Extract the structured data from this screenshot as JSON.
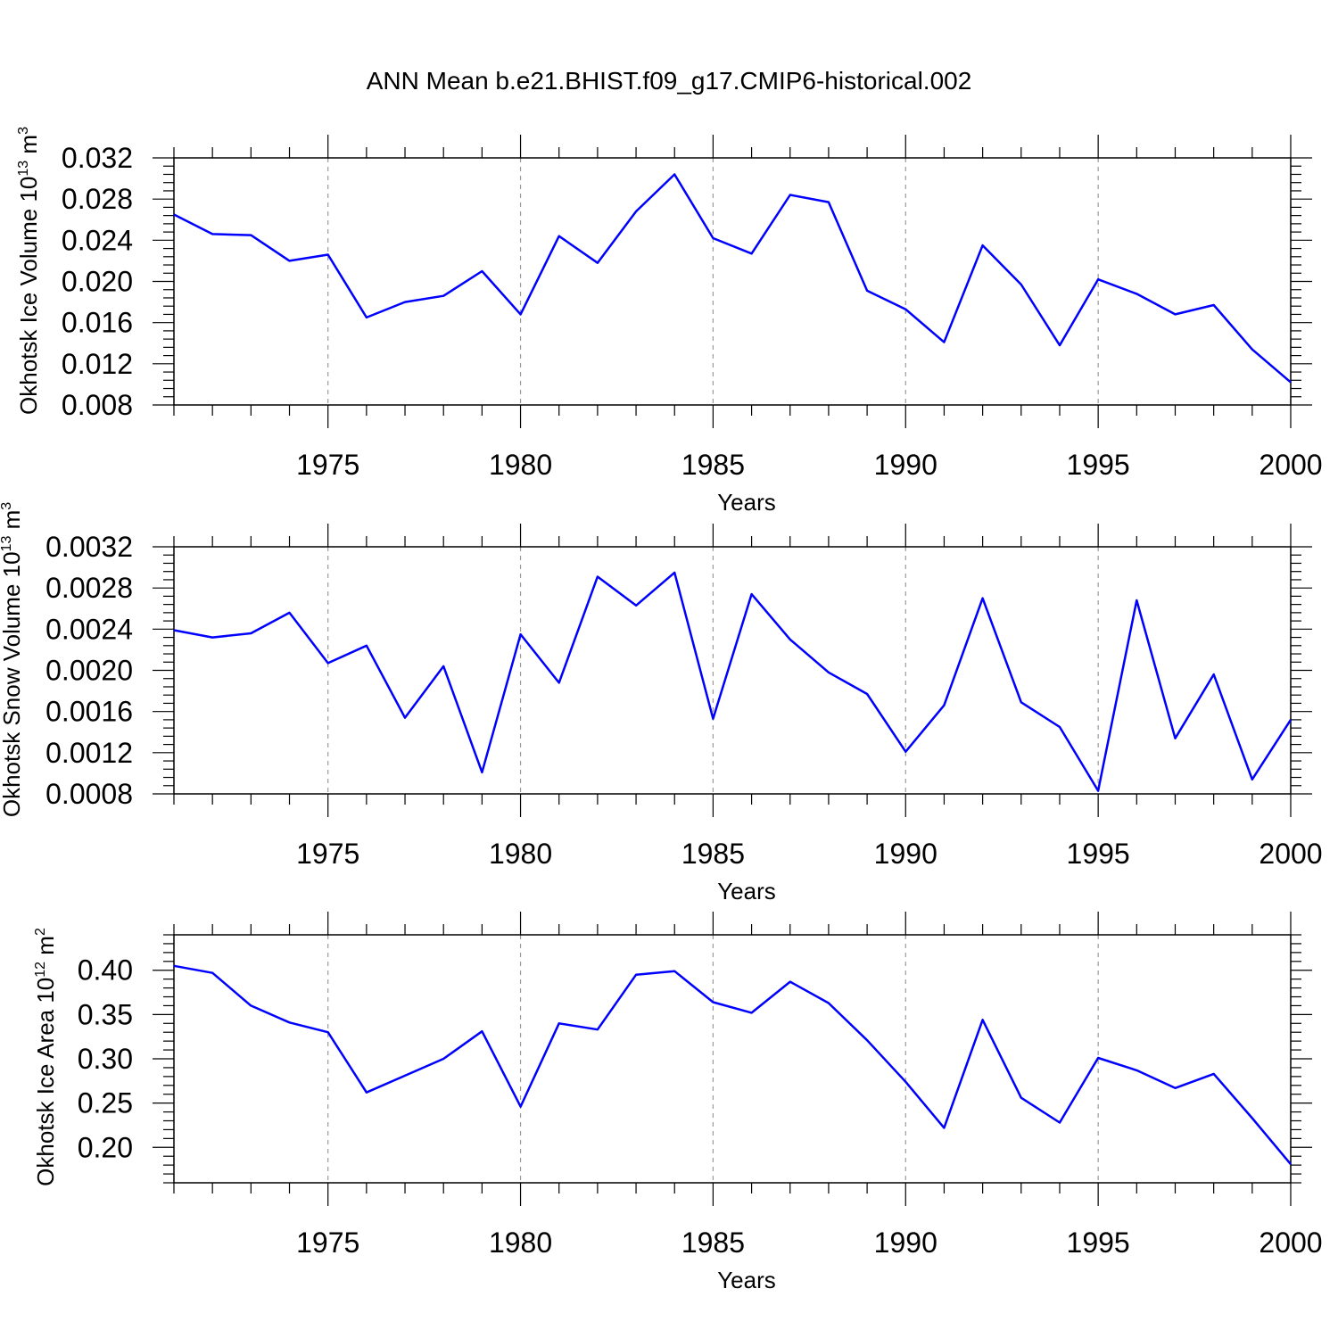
{
  "title": "ANN Mean b.e21.BHIST.f09_g17.CMIP6-historical.002",
  "line_color": "#0000ff",
  "chart_data": [
    {
      "type": "line",
      "ylabel": {
        "main": "Okhotsk Ice Volume 10",
        "sup": "13",
        "unit": " m",
        "unit_sup": "3"
      },
      "xlabel": "Years",
      "xlim": [
        1971,
        2000
      ],
      "ylim": [
        0.008,
        0.032
      ],
      "yticks": [
        "0.008",
        "0.012",
        "0.016",
        "0.020",
        "0.024",
        "0.028",
        "0.032"
      ],
      "xticks": [
        "1975",
        "1980",
        "1985",
        "1990",
        "1995",
        "2000"
      ],
      "x": [
        1971,
        1972,
        1973,
        1974,
        1975,
        1976,
        1977,
        1978,
        1979,
        1980,
        1981,
        1982,
        1983,
        1984,
        1985,
        1986,
        1987,
        1988,
        1989,
        1990,
        1991,
        1992,
        1993,
        1994,
        1995,
        1996,
        1997,
        1998,
        1999,
        2000
      ],
      "series": [
        {
          "values": [
            0.0265,
            0.0246,
            0.0245,
            0.022,
            0.0226,
            0.0165,
            0.018,
            0.0186,
            0.021,
            0.0168,
            0.0244,
            0.0218,
            0.0268,
            0.0304,
            0.0242,
            0.0227,
            0.0284,
            0.0277,
            0.0191,
            0.0173,
            0.0141,
            0.0235,
            0.0197,
            0.0138,
            0.0202,
            0.0188,
            0.0168,
            0.0177,
            0.0134,
            0.0102
          ]
        }
      ]
    },
    {
      "type": "line",
      "ylabel": {
        "main": "Okhotsk Snow Volume 10",
        "sup": "13",
        "unit": " m",
        "unit_sup": "3"
      },
      "xlabel": "Years",
      "xlim": [
        1971,
        2000
      ],
      "ylim": [
        0.0008,
        0.0032
      ],
      "yticks": [
        "0.0008",
        "0.0012",
        "0.0016",
        "0.0020",
        "0.0024",
        "0.0028",
        "0.0032"
      ],
      "xticks": [
        "1975",
        "1980",
        "1985",
        "1990",
        "1995",
        "2000"
      ],
      "x": [
        1971,
        1972,
        1973,
        1974,
        1975,
        1976,
        1977,
        1978,
        1979,
        1980,
        1981,
        1982,
        1983,
        1984,
        1985,
        1986,
        1987,
        1988,
        1989,
        1990,
        1991,
        1992,
        1993,
        1994,
        1995,
        1996,
        1997,
        1998,
        1999,
        2000
      ],
      "series": [
        {
          "values": [
            0.00239,
            0.00232,
            0.00236,
            0.00256,
            0.00207,
            0.00224,
            0.00154,
            0.00204,
            0.00101,
            0.00235,
            0.00188,
            0.00291,
            0.00263,
            0.00295,
            0.00153,
            0.00274,
            0.0023,
            0.00198,
            0.00177,
            0.00121,
            0.00166,
            0.0027,
            0.00169,
            0.00145,
            0.00083,
            0.00268,
            0.00134,
            0.00196,
            0.00094,
            0.00152
          ]
        }
      ]
    },
    {
      "type": "line",
      "ylabel": {
        "main": "Okhotsk Ice Area 10",
        "sup": "12",
        "unit": " m",
        "unit_sup": "2"
      },
      "xlabel": "Years",
      "xlim": [
        1971,
        2000
      ],
      "ylim": [
        0.16,
        0.44
      ],
      "yticks": [
        "0.20",
        "0.25",
        "0.30",
        "0.35",
        "0.40"
      ],
      "xticks": [
        "1975",
        "1980",
        "1985",
        "1990",
        "1995",
        "2000"
      ],
      "x": [
        1971,
        1972,
        1973,
        1974,
        1975,
        1976,
        1977,
        1978,
        1979,
        1980,
        1981,
        1982,
        1983,
        1984,
        1985,
        1986,
        1987,
        1988,
        1989,
        1990,
        1991,
        1992,
        1993,
        1994,
        1995,
        1996,
        1997,
        1998,
        1999,
        2000
      ],
      "series": [
        {
          "values": [
            0.405,
            0.397,
            0.36,
            0.341,
            0.33,
            0.262,
            0.281,
            0.3,
            0.331,
            0.246,
            0.34,
            0.333,
            0.395,
            0.399,
            0.364,
            0.352,
            0.387,
            0.363,
            0.321,
            0.274,
            0.222,
            0.344,
            0.256,
            0.228,
            0.301,
            0.287,
            0.267,
            0.283,
            0.233,
            0.181
          ]
        }
      ]
    }
  ]
}
